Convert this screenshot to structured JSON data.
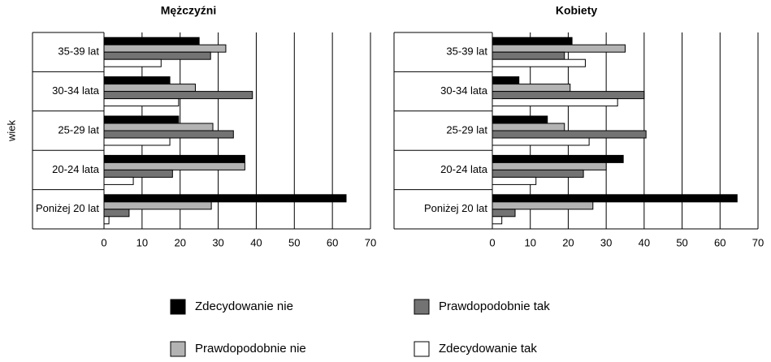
{
  "chart_data": [
    {
      "type": "bar",
      "orientation": "horizontal",
      "title": "Mężczyźni",
      "ylabel": "wiek",
      "categories": [
        "35-39 lat",
        "30-34 lata",
        "25-29 lat",
        "20-24 lata",
        "Poniżej 20 lat"
      ],
      "series": [
        {
          "name": "Zdecydowanie nie",
          "color": "#000000",
          "values": [
            25,
            17.3,
            19.6,
            37,
            63.6
          ]
        },
        {
          "name": "Prawdopodobnie nie",
          "color": "#b3b3b3",
          "values": [
            32,
            24,
            28.6,
            37,
            28.2
          ]
        },
        {
          "name": "Prawdopodobnie tak",
          "color": "#737373",
          "values": [
            28,
            39,
            34,
            18,
            6.6
          ]
        },
        {
          "name": "Zdecydowanie tak",
          "color": "#ffffff",
          "values": [
            15,
            19.6,
            17.3,
            7.7,
            1.3
          ]
        }
      ],
      "xlim": [
        0,
        70
      ],
      "xticks": [
        0,
        10,
        20,
        30,
        40,
        50,
        60,
        70
      ],
      "grid": true
    },
    {
      "type": "bar",
      "orientation": "horizontal",
      "title": "Kobiety",
      "categories": [
        "35-39 lat",
        "30-34 lata",
        "25-29 lat",
        "20-24 lata",
        "Poniżej 20 lat"
      ],
      "series": [
        {
          "name": "Zdecydowanie nie",
          "color": "#000000",
          "values": [
            21,
            7,
            14.5,
            34.5,
            64.5
          ]
        },
        {
          "name": "Prawdopodobnie nie",
          "color": "#b3b3b3",
          "values": [
            35,
            20.5,
            19,
            30,
            26.5
          ]
        },
        {
          "name": "Prawdopodobnie tak",
          "color": "#737373",
          "values": [
            19,
            40,
            40.5,
            24,
            6
          ]
        },
        {
          "name": "Zdecydowanie tak",
          "color": "#ffffff",
          "values": [
            24.5,
            33,
            25.5,
            11.5,
            2.5
          ]
        }
      ],
      "xlim": [
        0,
        70
      ],
      "xticks": [
        0,
        10,
        20,
        30,
        40,
        50,
        60,
        70
      ],
      "grid": true
    }
  ]
}
